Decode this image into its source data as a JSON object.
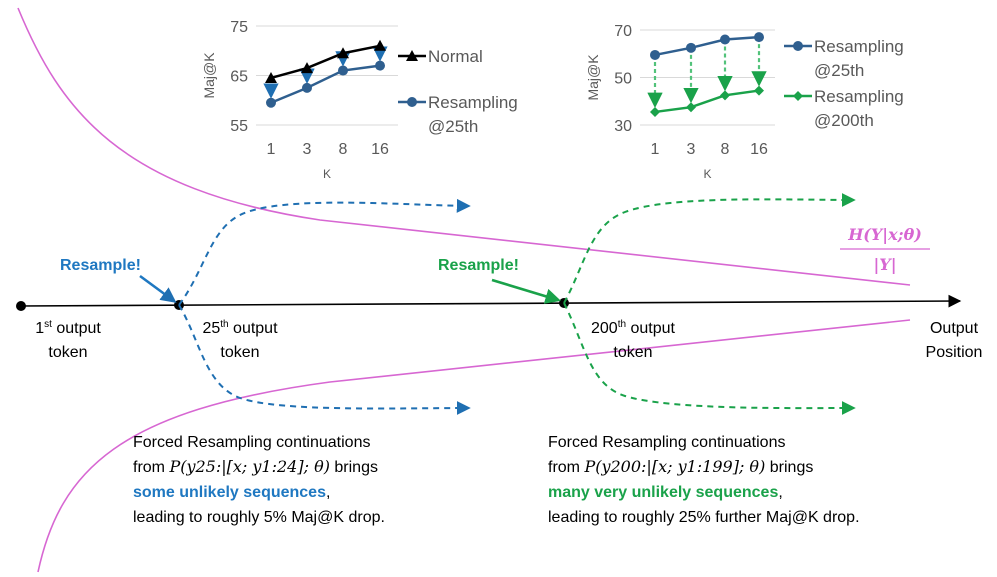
{
  "colors": {
    "black": "#000000",
    "blue_line": "#2f5f8f",
    "blue_text": "#1f78c1",
    "blue_arrow": "#4a9ad6",
    "green": "#1aa24a",
    "green_light": "#52c27a",
    "pink": "#d767d2",
    "axis_gray": "#595959",
    "grid": "#d9d9d9"
  },
  "timeline": {
    "points": [
      {
        "label_main": "1",
        "label_sup": "st",
        "label_rest": " output",
        "label_line2": "token"
      },
      {
        "label_main": "25",
        "label_sup": "th",
        "label_rest": " output",
        "label_line2": "token"
      },
      {
        "label_main": "200",
        "label_sup": "th",
        "label_rest": " output",
        "label_line2": "token"
      }
    ],
    "axis_label_line1": "Output",
    "axis_label_line2": "Position"
  },
  "entropy_label": {
    "numerator": "H(Y|x;θ)",
    "denominator": "|Y|"
  },
  "resample_labels": {
    "first": "Resample!",
    "second": "Resample!"
  },
  "captions": {
    "first": {
      "line1": "Forced Resampling continuations",
      "line2_prefix": "from ",
      "line2_math": "P(y25:|[x; y1:24]; θ)",
      "line2_suffix": " brings",
      "line3_highlight": "some unlikely sequences",
      "line3_suffix": ",",
      "line4": "leading to roughly 5% Maj@K drop."
    },
    "second": {
      "line1": "Forced Resampling continuations",
      "line2_prefix": "from ",
      "line2_math": "P(y200:|[x; y1:199]; θ)",
      "line2_suffix": " brings",
      "line3_highlight": "many very unlikely sequences",
      "line3_suffix": ",",
      "line4": "leading to roughly 25% further Maj@K drop."
    }
  },
  "chart_data": [
    {
      "type": "line",
      "x": [
        "1",
        "3",
        "8",
        "16"
      ],
      "xlabel": "K",
      "ylabel": "Maj@K",
      "ylim": [
        55,
        75
      ],
      "yticks": [
        55,
        65,
        75
      ],
      "grid": true,
      "legend_position": "right",
      "series": [
        {
          "name": "Normal",
          "marker": "triangle",
          "values": [
            64.5,
            66.5,
            69.5,
            71
          ]
        },
        {
          "name": "Resampling @25th",
          "legend_line1": "Resampling",
          "legend_line2": "@25th",
          "marker": "circle",
          "values": [
            59.5,
            62.5,
            66,
            67
          ]
        }
      ],
      "annotations": "dashed arrows from Normal down to Resampling @25th at each K"
    },
    {
      "type": "line",
      "x": [
        "1",
        "3",
        "8",
        "16"
      ],
      "xlabel": "K",
      "ylabel": "Maj@K",
      "ylim": [
        30,
        70
      ],
      "yticks": [
        30,
        50,
        70
      ],
      "grid": true,
      "legend_position": "right",
      "series": [
        {
          "name": "Resampling @25th",
          "legend_line1": "Resampling",
          "legend_line2": "@25th",
          "marker": "circle",
          "values": [
            59.5,
            62.5,
            66,
            67
          ]
        },
        {
          "name": "Resampling @200th",
          "legend_line1": "Resampling",
          "legend_line2": "@200th",
          "marker": "diamond",
          "values": [
            35.5,
            37.5,
            42.5,
            44.5
          ]
        }
      ],
      "annotations": "dashed arrows from Resampling @25th down to Resampling @200th at each K"
    }
  ]
}
